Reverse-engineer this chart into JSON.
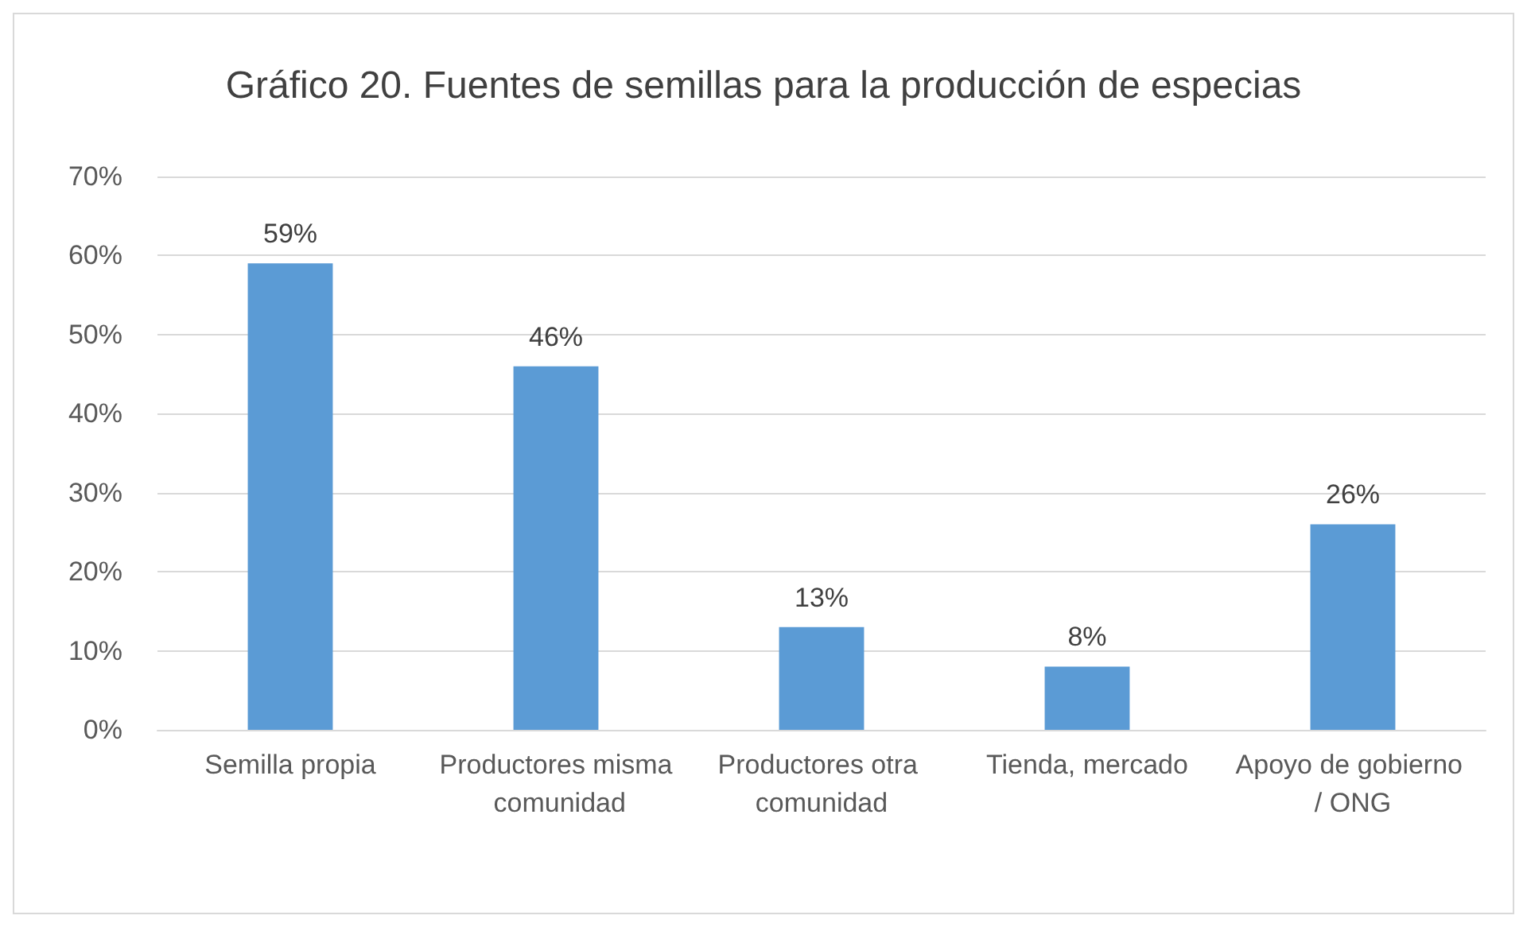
{
  "chart_data": {
    "type": "bar",
    "title": "Gráfico 20. Fuentes de semillas para la producción de especias",
    "categories": [
      "Semilla propia",
      "Productores misma comunidad",
      "Productores otra comunidad",
      "Tienda, mercado",
      "Apoyo de gobierno / ONG"
    ],
    "values": [
      59,
      46,
      13,
      8,
      26
    ],
    "value_labels": [
      "59%",
      "46%",
      "13%",
      "8%",
      "26%"
    ],
    "color": "#5b9bd5",
    "ylim": [
      0,
      70
    ],
    "yticks": [
      {
        "value": 0,
        "label": "0%"
      },
      {
        "value": 10,
        "label": "10%"
      },
      {
        "value": 20,
        "label": "20%"
      },
      {
        "value": 30,
        "label": "30%"
      },
      {
        "value": 40,
        "label": "40%"
      },
      {
        "value": 50,
        "label": "50%"
      },
      {
        "value": 60,
        "label": "60%"
      },
      {
        "value": 70,
        "label": "70%"
      }
    ],
    "grid": "y"
  }
}
